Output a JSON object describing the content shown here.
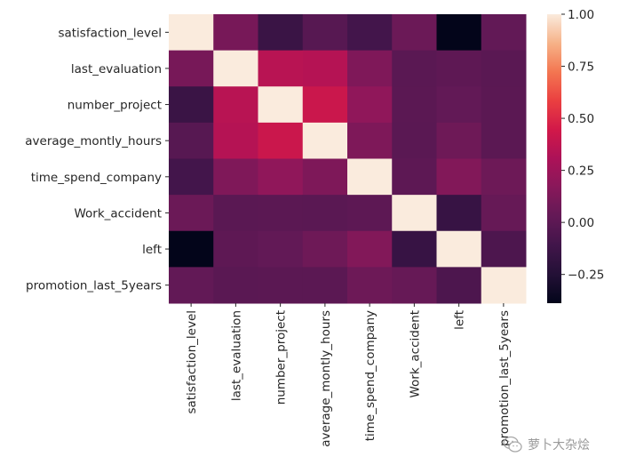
{
  "chart_data": {
    "type": "heatmap",
    "title": "",
    "xlabel": "",
    "ylabel": "",
    "colormap": "rocket",
    "labels": [
      "satisfaction_level",
      "last_evaluation",
      "number_project",
      "average_montly_hours",
      "time_spend_company",
      "Work_accident",
      "left",
      "promotion_last_5years"
    ],
    "values": [
      [
        1.0,
        0.105,
        -0.143,
        -0.02,
        -0.101,
        0.059,
        -0.388,
        0.026
      ],
      [
        0.105,
        1.0,
        0.349,
        0.34,
        0.132,
        -0.007,
        0.007,
        -0.009
      ],
      [
        -0.143,
        0.349,
        1.0,
        0.417,
        0.197,
        -0.005,
        0.024,
        -0.006
      ],
      [
        -0.02,
        0.34,
        0.417,
        1.0,
        0.128,
        -0.01,
        0.071,
        -0.004
      ],
      [
        -0.101,
        0.132,
        0.197,
        0.128,
        1.0,
        0.002,
        0.145,
        0.067
      ],
      [
        0.059,
        -0.007,
        -0.005,
        -0.01,
        0.002,
        1.0,
        -0.155,
        0.039
      ],
      [
        -0.388,
        0.007,
        0.024,
        0.071,
        0.145,
        -0.155,
        1.0,
        -0.062
      ],
      [
        0.026,
        -0.009,
        -0.006,
        -0.004,
        0.067,
        0.039,
        -0.062,
        1.0
      ]
    ],
    "colorbar": {
      "range": [
        -0.388,
        1.0
      ],
      "ticks": [
        1.0,
        0.75,
        0.5,
        0.25,
        0.0,
        -0.25
      ],
      "tick_labels": [
        "1.00",
        "0.75",
        "0.50",
        "0.25",
        "0.00",
        "−0.25"
      ]
    },
    "grid": false,
    "legend": "colorbar-right"
  },
  "watermark": {
    "text": "萝卜大杂烩",
    "icon": "wechat-icon"
  }
}
